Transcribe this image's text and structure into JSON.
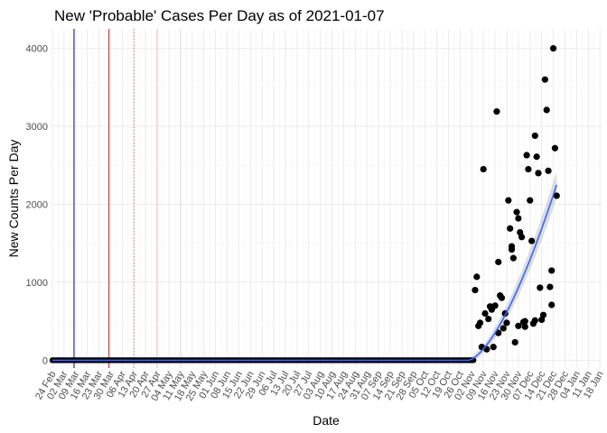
{
  "chart_data": {
    "type": "scatter",
    "title": "New 'Probable' Cases Per Day as of 2021-01-07",
    "xlabel": "Date",
    "ylabel": "New Counts Per Day",
    "x_range": [
      0,
      330
    ],
    "ylim": [
      -100,
      4250
    ],
    "grid": true,
    "x_tick_labels": [
      "24 Feb",
      "02 Mar",
      "09 Mar",
      "16 Mar",
      "23 Mar",
      "30 Mar",
      "06 Apr",
      "13 Apr",
      "20 Apr",
      "27 Apr",
      "04 May",
      "11 May",
      "18 May",
      "25 May",
      "01 Jun",
      "08 Jun",
      "15 Jun",
      "22 Jun",
      "29 Jun",
      "06 Jul",
      "13 Jul",
      "20 Jul",
      "27 Jul",
      "03 Aug",
      "10 Aug",
      "17 Aug",
      "24 Aug",
      "31 Aug",
      "07 Sep",
      "14 Sep",
      "21 Sep",
      "28 Sep",
      "05 Oct",
      "12 Oct",
      "19 Oct",
      "26 Oct",
      "02 Nov",
      "09 Nov",
      "16 Nov",
      "23 Nov",
      "30 Nov",
      "07 Dec",
      "14 Dec",
      "21 Dec",
      "28 Dec",
      "04 Jan",
      "11 Jan",
      "18 Jan"
    ],
    "y_ticks": [
      0,
      1000,
      2000,
      3000,
      4000
    ],
    "y_tick_labels": [
      "0",
      "1000",
      "2000",
      "3000",
      "4000"
    ],
    "zero_period_days": [
      0,
      253
    ],
    "points": [
      [
        254,
        900
      ],
      [
        255,
        1070
      ],
      [
        256,
        440
      ],
      [
        257,
        480
      ],
      [
        258,
        170
      ],
      [
        259,
        2450
      ],
      [
        260,
        600
      ],
      [
        261,
        140
      ],
      [
        262,
        530
      ],
      [
        263,
        690
      ],
      [
        264,
        650
      ],
      [
        265,
        170
      ],
      [
        266,
        700
      ],
      [
        267,
        3190
      ],
      [
        268,
        1260
      ],
      [
        269,
        830
      ],
      [
        270,
        800
      ],
      [
        271,
        410
      ],
      [
        272,
        600
      ],
      [
        273,
        480
      ],
      [
        274,
        2050
      ],
      [
        275,
        1690
      ],
      [
        276,
        1460
      ],
      [
        277,
        1310
      ],
      [
        278,
        230
      ],
      [
        279,
        1900
      ],
      [
        280,
        1820
      ],
      [
        281,
        1640
      ],
      [
        282,
        1580
      ],
      [
        283,
        490
      ],
      [
        284,
        430
      ],
      [
        285,
        2630
      ],
      [
        286,
        2450
      ],
      [
        287,
        2050
      ],
      [
        288,
        1530
      ],
      [
        289,
        470
      ],
      [
        290,
        2880
      ],
      [
        291,
        2610
      ],
      [
        292,
        2400
      ],
      [
        293,
        930
      ],
      [
        294,
        520
      ],
      [
        295,
        580
      ],
      [
        296,
        3600
      ],
      [
        297,
        3210
      ],
      [
        298,
        2430
      ],
      [
        299,
        940
      ],
      [
        300,
        710
      ],
      [
        301,
        4000
      ],
      [
        302,
        2720
      ],
      [
        303,
        2110
      ],
      [
        300,
        1150
      ],
      [
        268,
        350
      ],
      [
        276,
        1420
      ],
      [
        280,
        440
      ],
      [
        284,
        500
      ],
      [
        290,
        510
      ]
    ],
    "reference_lines": [
      {
        "x": 13,
        "color": "#00008b",
        "style": "solid"
      },
      {
        "x": 34,
        "color": "#b22222",
        "style": "solid"
      },
      {
        "x": 49,
        "color": "#e07070",
        "style": "dotted"
      },
      {
        "x": 63,
        "color": "#f4b8b8",
        "style": "solid"
      },
      {
        "x": 77,
        "color": "#f8d0d0",
        "style": "solid"
      }
    ],
    "trend": {
      "color": "#3366ff",
      "band_color": "#b3b3b3",
      "flat_until_day": 250,
      "end_value": 2250,
      "band_half_width": [
        0,
        150
      ]
    }
  }
}
